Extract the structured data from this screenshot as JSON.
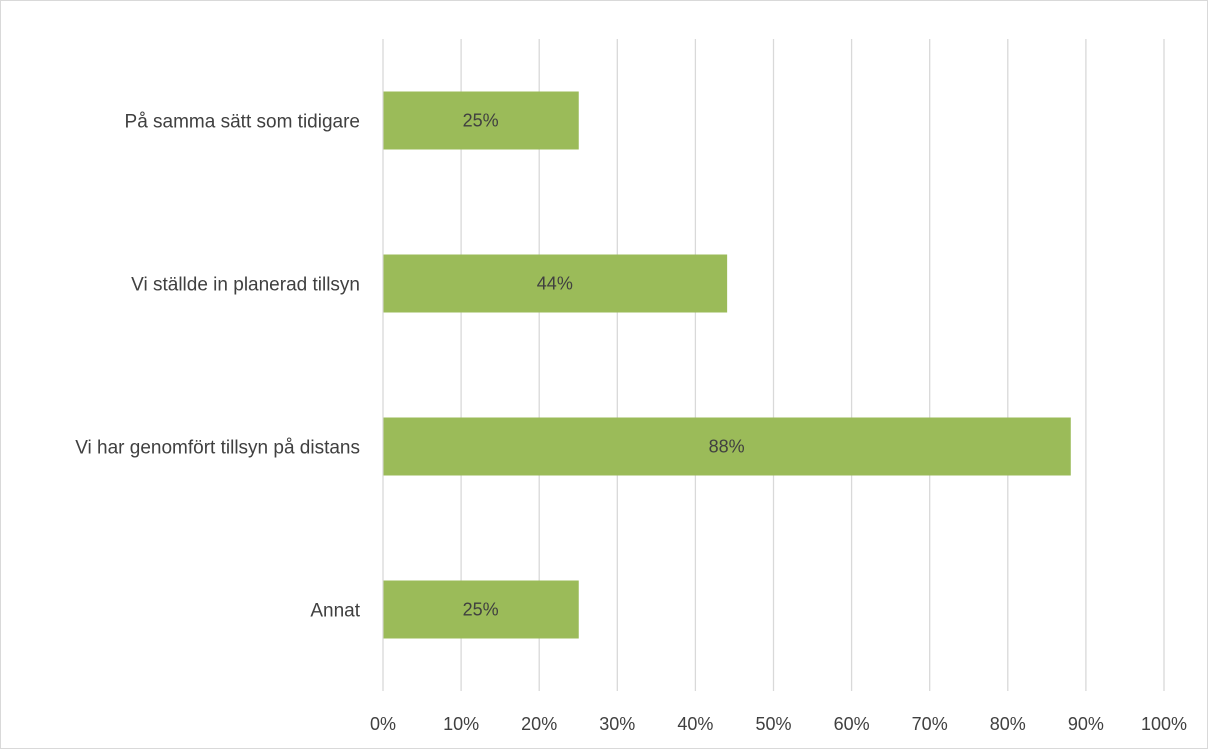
{
  "chart_data": {
    "type": "bar",
    "orientation": "horizontal",
    "categories": [
      "På samma sätt som tidigare",
      "Vi ställde in planerad tillsyn",
      "Vi har genomfört tillsyn på distans",
      "Annat"
    ],
    "values": [
      25,
      44,
      88,
      25
    ],
    "data_labels": [
      "25%",
      "44%",
      "88%",
      "25%"
    ],
    "x_ticks": [
      "0%",
      "10%",
      "20%",
      "30%",
      "40%",
      "50%",
      "60%",
      "70%",
      "80%",
      "90%",
      "100%"
    ],
    "xlim": [
      0,
      100
    ],
    "title": "",
    "xlabel": "",
    "ylabel": "",
    "grid": "vertical",
    "legend": "none",
    "bar_color": "#9bbb59",
    "grid_color": "#d9d9d9",
    "text_color": "#404040"
  }
}
